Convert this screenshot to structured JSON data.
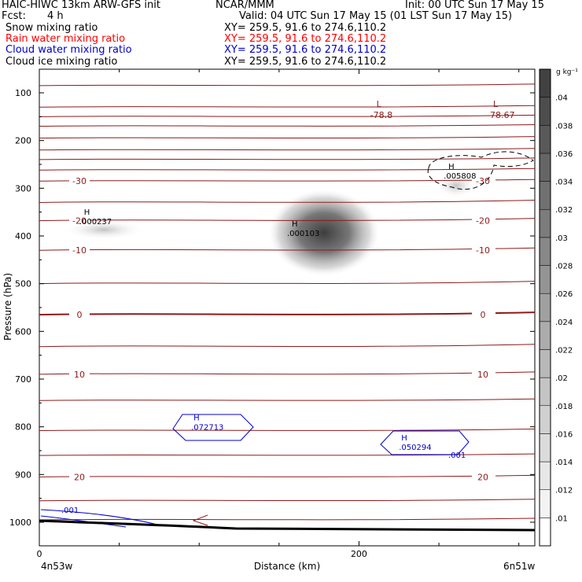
{
  "header": {
    "model_title": "HAIC-HIWC 13km ARW-GFS init",
    "org": "NCAR/MMM",
    "init": "Init: 00 UTC Sun 17 May 15",
    "fcst_label": "Fcst:",
    "fcst_value": "4 h",
    "valid": "Valid: 04 UTC Sun 17 May 15 (01 LST Sun 17 May 15)"
  },
  "fields": [
    {
      "label": "Snow mixing ratio",
      "xy": "XY= 259.5, 91.6 to 274.6,110.2",
      "color": "#000000"
    },
    {
      "label": "Rain water mixing ratio",
      "xy": "XY= 259.5, 91.6 to 274.6,110.2",
      "color": "#ff0000"
    },
    {
      "label": "Cloud water mixing ratio",
      "xy": "XY= 259.5, 91.6 to 274.6,110.2",
      "color": "#0000cc"
    },
    {
      "label": "Cloud ice mixing ratio",
      "xy": "XY= 259.5, 91.6 to 274.6,110.2",
      "color": "#000000"
    }
  ],
  "chart_data": {
    "type": "contour",
    "xlabel": "Distance (km)",
    "ylabel": "Pressure (hPa)",
    "xlim": [
      0,
      310
    ],
    "ylim": [
      50,
      1050
    ],
    "x_ticks": [
      0,
      200
    ],
    "y_ticks": [
      100,
      200,
      300,
      400,
      500,
      600,
      700,
      800,
      900,
      1000
    ],
    "x_end_labels": {
      "left": "4n53w",
      "right": "6n51w"
    },
    "temperature_contours": {
      "color": "#8b1a1a",
      "levels": [
        {
          "p": 85,
          "label": ""
        },
        {
          "p": 130,
          "label": ""
        },
        {
          "p": 150,
          "label": ""
        },
        {
          "p": 170,
          "label": ""
        },
        {
          "p": 195,
          "label": ""
        },
        {
          "p": 220,
          "label": ""
        },
        {
          "p": 240,
          "label": ""
        },
        {
          "p": 262,
          "label": ""
        },
        {
          "p": 285,
          "label": "-30"
        },
        {
          "p": 330,
          "label": ""
        },
        {
          "p": 368,
          "label": "-20"
        },
        {
          "p": 430,
          "label": "-10"
        },
        {
          "p": 500,
          "label": ""
        },
        {
          "p": 565,
          "label": "0"
        },
        {
          "p": 632,
          "label": ""
        },
        {
          "p": 690,
          "label": "10"
        },
        {
          "p": 745,
          "label": ""
        },
        {
          "p": 808,
          "label": ""
        },
        {
          "p": 860,
          "label": ""
        },
        {
          "p": 905,
          "label": "20"
        },
        {
          "p": 955,
          "label": ""
        },
        {
          "p": 995,
          "label": ""
        }
      ],
      "extrema": [
        {
          "type": "L",
          "value": "-78.8",
          "x": 207,
          "p": 93
        },
        {
          "type": "L",
          "value": "-78.67",
          "x": 280,
          "p": 93
        }
      ]
    },
    "snow_shading": {
      "unit": "g kg⁻¹",
      "colorbar_ticks": [
        ".01",
        ".012",
        ".014",
        ".016",
        ".018",
        ".02",
        ".022",
        ".024",
        ".026",
        ".028",
        ".03",
        ".032",
        ".034",
        ".036",
        ".038",
        ".04"
      ],
      "maxima": [
        {
          "label": "H",
          "value": ".000237",
          "x": 25,
          "p": 375
        },
        {
          "label": "H",
          "value": ".000103",
          "x": 155,
          "p": 400
        },
        {
          "label": "H",
          "value": ".005808",
          "x": 253,
          "p": 280
        }
      ]
    },
    "cloud_water_contours": {
      "color": "#0000cc",
      "level_label": ".001",
      "maxima": [
        {
          "label": "H",
          "value": ".072713",
          "x": 95,
          "p": 803
        },
        {
          "label": "H",
          "value": ".050294",
          "x": 225,
          "p": 845
        }
      ]
    }
  }
}
